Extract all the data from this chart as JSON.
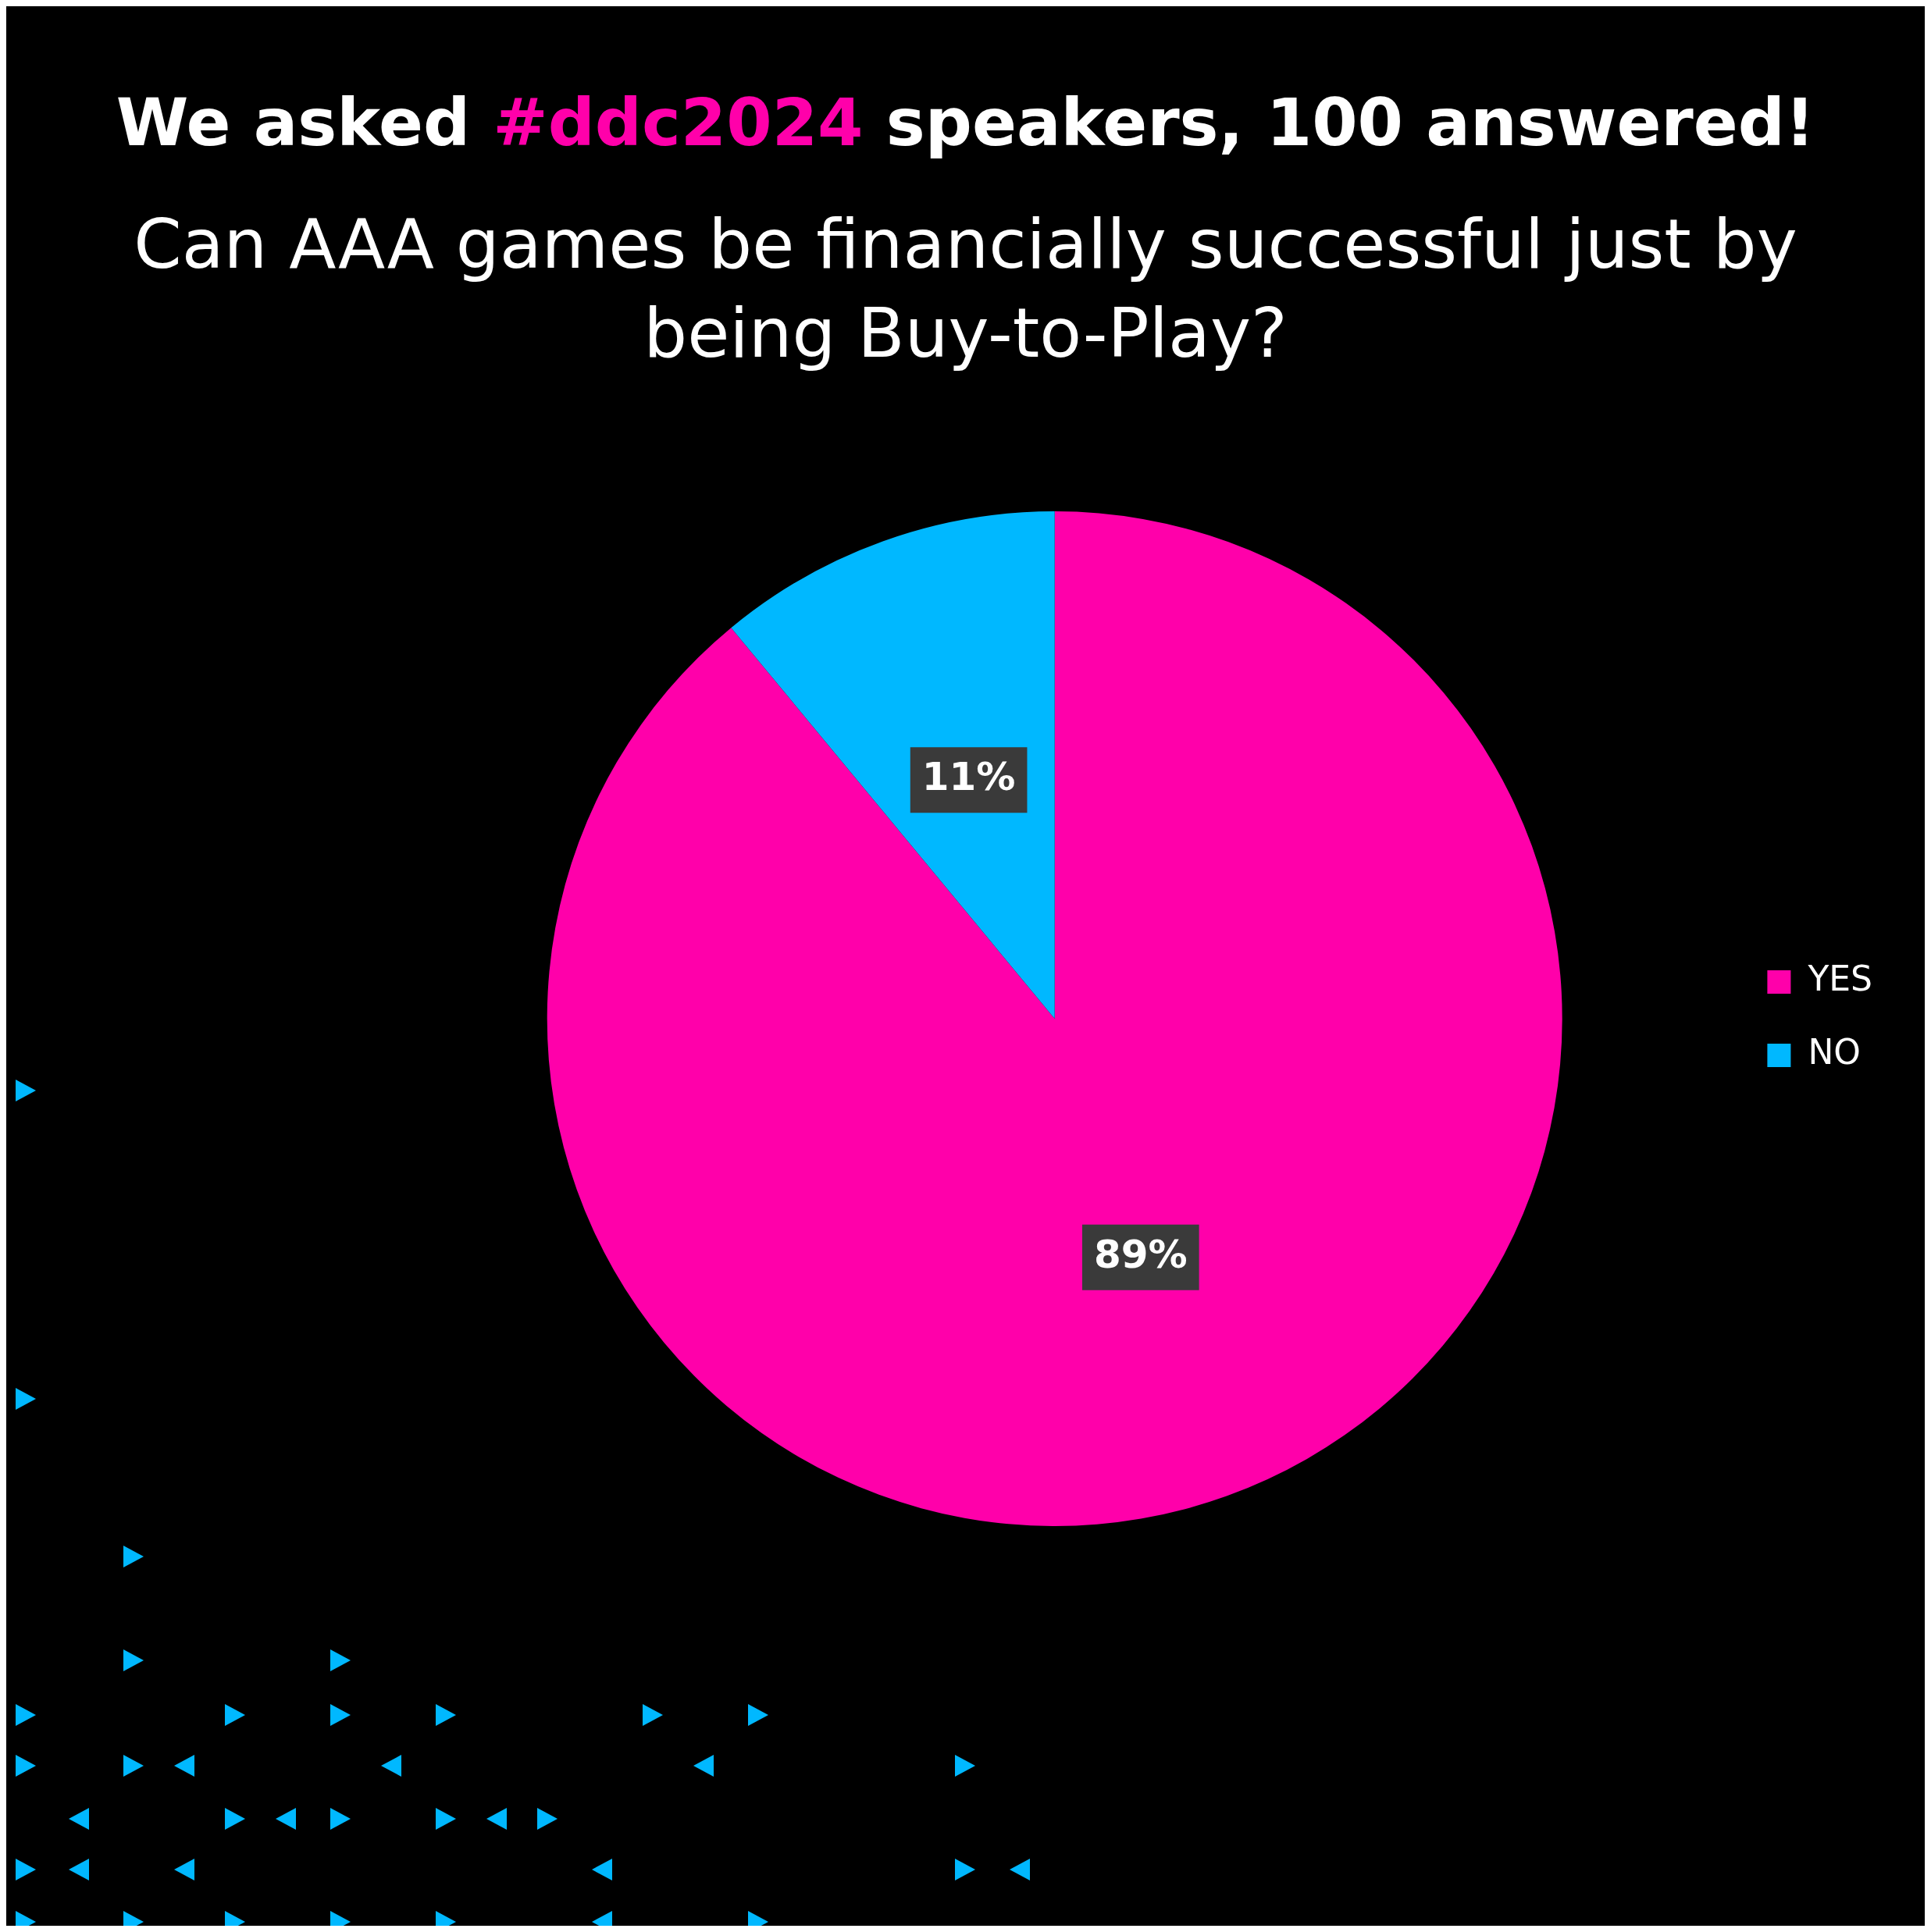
{
  "chart_data": {
    "type": "pie",
    "title": "We asked #ddc2024 speakers, 100 answered!",
    "subtitle": "Can AAA games be financially successful just by being Buy-to-Play?",
    "categories": [
      "YES",
      "NO"
    ],
    "values": [
      89,
      11
    ],
    "colors": [
      "#ff00aa",
      "#00b8ff"
    ],
    "value_labels": [
      "89%",
      "11%"
    ],
    "legend": "right"
  }
}
